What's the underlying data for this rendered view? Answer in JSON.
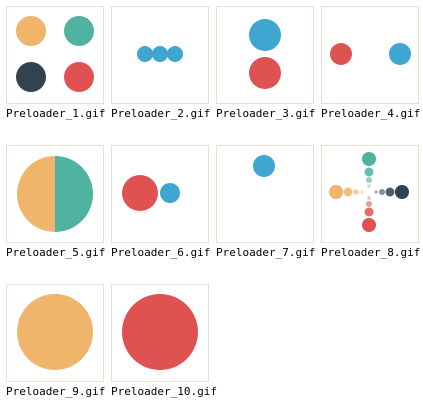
{
  "files": [
    {
      "name": "Preloader_1.gif"
    },
    {
      "name": "Preloader_2.gif"
    },
    {
      "name": "Preloader_3.gif"
    },
    {
      "name": "Preloader_4.gif"
    },
    {
      "name": "Preloader_5.gif"
    },
    {
      "name": "Preloader_6.gif"
    },
    {
      "name": "Preloader_7.gif"
    },
    {
      "name": "Preloader_8.gif"
    },
    {
      "name": "Preloader_9.gif"
    },
    {
      "name": "Preloader_10.gif"
    }
  ],
  "colors": {
    "orange": "#efb56b",
    "teal": "#4fb3a0",
    "navy": "#30434f",
    "red": "#e05252",
    "blue": "#3fa5d1",
    "frame": "#e6e1cf"
  }
}
